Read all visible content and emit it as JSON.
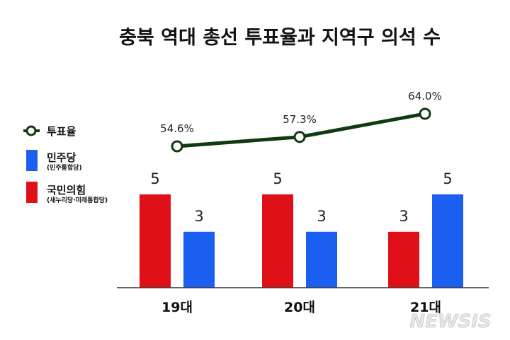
{
  "chart_data": {
    "type": "bar",
    "title": "충북 역대 총선 투표율과 지역구 의석 수",
    "categories": [
      "19대",
      "20대",
      "21대"
    ],
    "series": [
      {
        "name": "국민의힘",
        "sub": "(새누리당·미래통합당)",
        "color": "#e01018",
        "values": [
          5,
          5,
          3
        ]
      },
      {
        "name": "민주당",
        "sub": "(민주통합당)",
        "color": "#1a5ff0",
        "values": [
          3,
          3,
          5
        ]
      }
    ],
    "line": {
      "name": "투표율",
      "color": "#0f3a12",
      "values": [
        54.6,
        57.3,
        64.0
      ],
      "labels": [
        "54.6%",
        "57.3%",
        "64.0%"
      ]
    },
    "ylim": [
      0,
      5
    ],
    "xlabel": "",
    "ylabel": ""
  },
  "watermark": "NEWSIS"
}
